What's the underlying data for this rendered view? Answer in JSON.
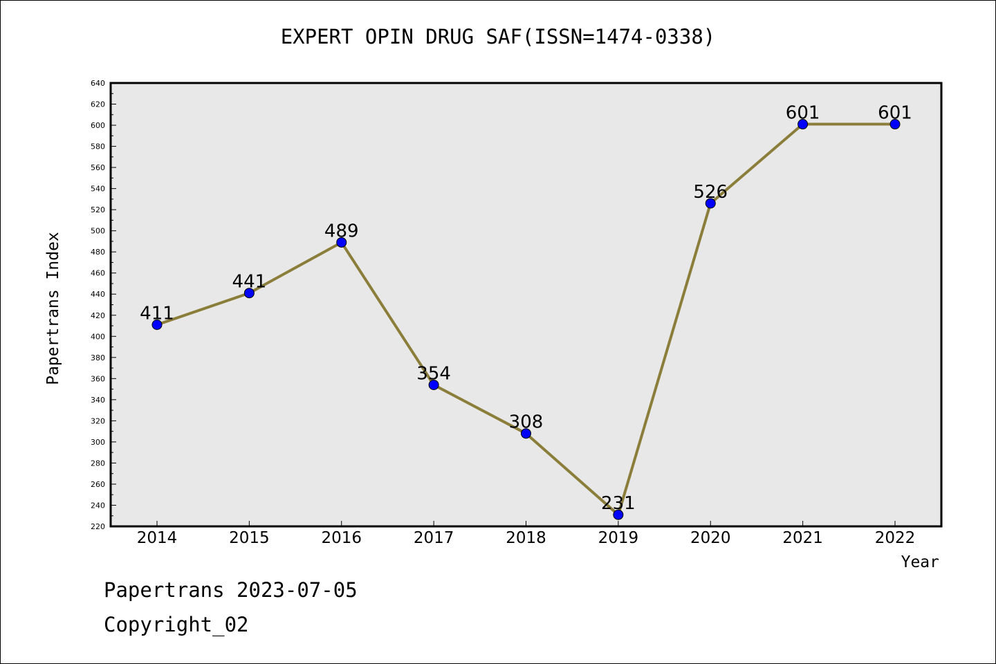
{
  "chart_data": {
    "type": "line",
    "title": "EXPERT OPIN DRUG SAF(ISSN=1474-0338)",
    "xlabel": "Year",
    "ylabel": "Papertrans Index",
    "categories": [
      "2014",
      "2015",
      "2016",
      "2017",
      "2018",
      "2019",
      "2020",
      "2021",
      "2022"
    ],
    "series": [
      {
        "values": [
          411,
          441,
          489,
          354,
          308,
          231,
          526,
          601,
          601
        ]
      }
    ],
    "ylim": [
      220,
      640
    ],
    "ytick_step": 20,
    "grid": false,
    "line_color": "#8b7d3a",
    "marker_color": "#0000ff",
    "plot_background": "#e8e8e8"
  },
  "footer": {
    "line1": "Papertrans 2023-07-05",
    "line2": "Copyright_02"
  }
}
